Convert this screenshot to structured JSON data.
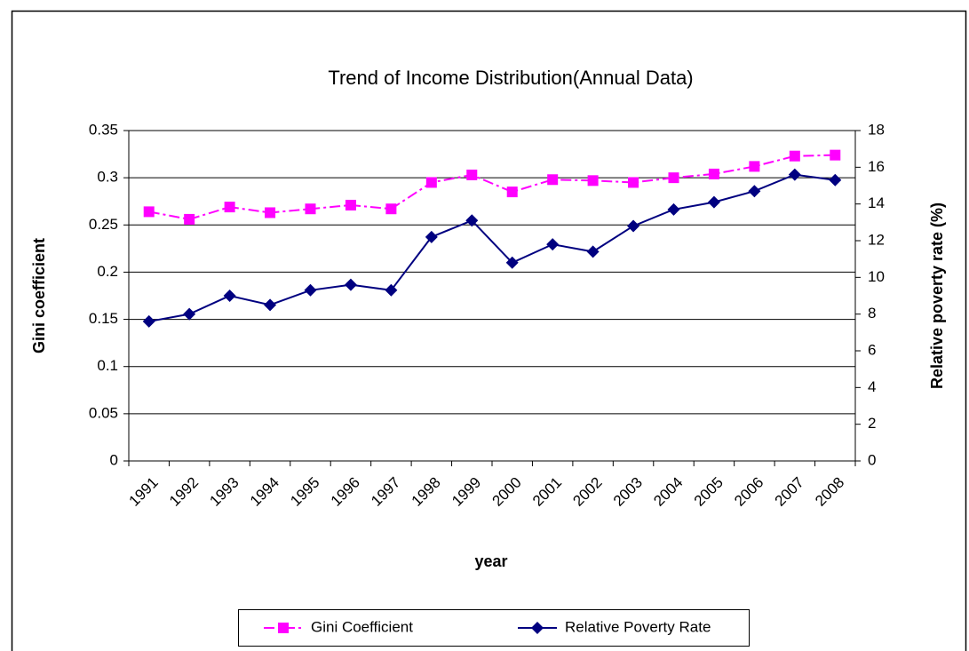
{
  "chart_data": {
    "type": "line",
    "title": "Trend of Income Distribution(Annual Data)",
    "x_label": "year",
    "y_label": "Gini coefficient",
    "y2_label": "Relative poverty rate (%)",
    "categories": [
      "1991",
      "1992",
      "1993",
      "1994",
      "1995",
      "1996",
      "1997",
      "1998",
      "1999",
      "2000",
      "2001",
      "2002",
      "2003",
      "2004",
      "2005",
      "2006",
      "2007",
      "2008"
    ],
    "series": [
      {
        "name": "Gini Coefficient",
        "color": "#ff00ff",
        "marker": "square",
        "dash": "dash-dot",
        "values": [
          0.264,
          0.256,
          0.269,
          0.263,
          0.267,
          0.271,
          0.267,
          0.295,
          0.303,
          0.285,
          0.298,
          0.297,
          0.295,
          0.3,
          0.304,
          0.312,
          0.323,
          0.324
        ]
      },
      {
        "name": "Relative Poverty Rate",
        "color": "#000080",
        "marker": "diamond",
        "axis": "y2",
        "values": [
          7.6,
          8.0,
          9.0,
          8.5,
          9.3,
          9.6,
          9.3,
          12.2,
          13.1,
          10.8,
          11.8,
          11.4,
          12.8,
          13.7,
          14.1,
          14.7,
          15.6,
          15.3
        ]
      }
    ],
    "ylim": [
      0,
      0.35
    ],
    "yticks": [
      0,
      0.05,
      0.1,
      0.15,
      0.2,
      0.25,
      0.3,
      0.35
    ],
    "y2lim": [
      0,
      18
    ],
    "y2ticks": [
      0,
      2,
      4,
      6,
      8,
      10,
      12,
      14,
      16,
      18
    ],
    "grid": true,
    "legend": "bottom"
  }
}
